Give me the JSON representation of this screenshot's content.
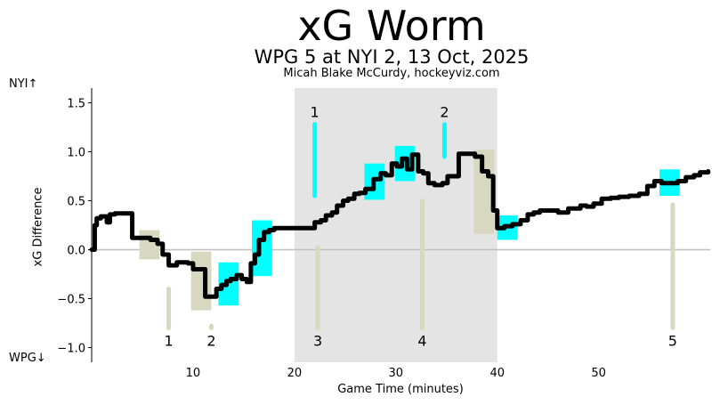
{
  "header": {
    "title": "xG Worm",
    "subtitle": "WPG 5 at NYI 2, 13 Oct, 2025",
    "byline": "Micah Blake McCurdy, hockeyviz.com"
  },
  "chart_data": {
    "type": "line",
    "title": "xG Worm",
    "subtitle": "WPG 5 at NYI 2, 13 Oct, 2025",
    "xlabel": "Game Time (minutes)",
    "ylabel": "xG Difference",
    "team_top": "NYI↑",
    "team_bottom": "WPG↓",
    "xlim": [
      0,
      61
    ],
    "ylim": [
      -1.15,
      1.65
    ],
    "xticks": [
      "10",
      "20",
      "30",
      "40",
      "50"
    ],
    "xtick_values": [
      10,
      20,
      30,
      40,
      50
    ],
    "yticks": [
      "−1.0",
      "−0.5",
      "0.0",
      "0.5",
      "1.0",
      "1.5"
    ],
    "ytick_values": [
      -1.0,
      -0.5,
      0.0,
      0.5,
      1.0,
      1.5
    ],
    "shaded_period": [
      20,
      40
    ],
    "colors": {
      "worm": "#000000",
      "nyi_powerplay": "#00ffff",
      "wpg_powerplay": "#d8d8c0",
      "period_shade": "#e4e4e4",
      "zero_line": "#bfbfbf"
    },
    "worm": {
      "x": [
        0,
        0.3,
        0.5,
        0.9,
        1.5,
        1.8,
        2.3,
        3.0,
        3.8,
        4.0,
        4.5,
        5.2,
        5.8,
        6.5,
        7.0,
        7.6,
        8.0,
        8.4,
        8.8,
        9.5,
        10.0,
        10.8,
        11.2,
        11.8,
        12.3,
        12.8,
        13.3,
        13.7,
        14.3,
        14.8,
        15.3,
        15.7,
        16.1,
        16.5,
        17.0,
        17.5,
        18.0,
        19.0,
        20.5,
        21.5,
        22.0,
        22.6,
        23.1,
        23.7,
        24.2,
        24.8,
        25.3,
        25.9,
        26.4,
        27.0,
        27.8,
        28.5,
        29.0,
        29.6,
        30.1,
        30.6,
        31.1,
        31.6,
        32.2,
        32.7,
        33.2,
        33.8,
        34.6,
        35.1,
        35.5,
        36.2,
        37.1,
        37.8,
        38.5,
        39.1,
        39.6,
        40.0,
        40.7,
        41.5,
        42.3,
        43.0,
        43.6,
        44.2,
        45.0,
        46.0,
        47.0,
        47.5,
        48.2,
        48.8,
        49.5,
        50.3,
        51.2,
        52.0,
        53.0,
        54.0,
        54.8,
        55.5,
        56.2,
        57.0,
        57.8,
        58.6,
        59.4,
        60.0,
        60.8
      ],
      "y": [
        0.0,
        0.25,
        0.32,
        0.34,
        0.28,
        0.36,
        0.37,
        0.37,
        0.37,
        0.12,
        0.12,
        0.12,
        0.1,
        0.06,
        -0.05,
        -0.16,
        -0.16,
        -0.13,
        -0.13,
        -0.14,
        -0.2,
        -0.2,
        -0.48,
        -0.48,
        -0.4,
        -0.36,
        -0.32,
        -0.3,
        -0.26,
        -0.3,
        -0.33,
        -0.14,
        -0.05,
        0.1,
        0.18,
        0.2,
        0.22,
        0.22,
        0.22,
        0.22,
        0.28,
        0.3,
        0.35,
        0.38,
        0.45,
        0.5,
        0.52,
        0.57,
        0.58,
        0.62,
        0.72,
        0.78,
        0.76,
        0.88,
        0.85,
        0.93,
        0.82,
        0.97,
        0.8,
        0.78,
        0.68,
        0.66,
        0.68,
        0.75,
        0.75,
        0.98,
        0.98,
        0.95,
        0.8,
        0.75,
        0.4,
        0.22,
        0.24,
        0.26,
        0.3,
        0.36,
        0.38,
        0.4,
        0.4,
        0.38,
        0.42,
        0.42,
        0.45,
        0.44,
        0.47,
        0.52,
        0.53,
        0.54,
        0.55,
        0.57,
        0.65,
        0.7,
        0.68,
        0.68,
        0.7,
        0.74,
        0.76,
        0.79,
        0.8
      ]
    },
    "powerplays": [
      {
        "team": "WPG",
        "x0": 4.7,
        "x1": 6.7,
        "y0": -0.1,
        "y1": 0.2
      },
      {
        "team": "WPG",
        "x0": 9.8,
        "x1": 11.8,
        "y0": -0.62,
        "y1": -0.02
      },
      {
        "team": "NYI",
        "x0": 12.5,
        "x1": 14.5,
        "y0": -0.57,
        "y1": -0.13
      },
      {
        "team": "NYI",
        "x0": 15.8,
        "x1": 17.8,
        "y0": -0.27,
        "y1": 0.3
      },
      {
        "team": "NYI",
        "x0": 26.9,
        "x1": 28.9,
        "y0": 0.51,
        "y1": 0.88
      },
      {
        "team": "NYI",
        "x0": 29.9,
        "x1": 31.9,
        "y0": 0.7,
        "y1": 1.06
      },
      {
        "team": "WPG",
        "x0": 37.7,
        "x1": 39.7,
        "y0": 0.16,
        "y1": 1.02
      },
      {
        "team": "NYI",
        "x0": 40.0,
        "x1": 42.0,
        "y0": 0.1,
        "y1": 0.35
      },
      {
        "team": "NYI",
        "x0": 56.0,
        "x1": 58.0,
        "y0": 0.55,
        "y1": 0.82
      }
    ],
    "goals": [
      {
        "team": "WPG",
        "label": "1",
        "x": 7.6,
        "y0": -0.8,
        "y1": -0.4
      },
      {
        "team": "WPG",
        "label": "2",
        "x": 11.8,
        "y0": -0.8,
        "y1": -0.78
      },
      {
        "team": "WPG",
        "label": "3",
        "x": 22.3,
        "y0": -0.8,
        "y1": 0.02
      },
      {
        "team": "NYI",
        "label": "1",
        "x": 22.0,
        "y0": 0.55,
        "y1": 1.28
      },
      {
        "team": "WPG",
        "label": "4",
        "x": 32.6,
        "y0": -0.8,
        "y1": 0.5
      },
      {
        "team": "NYI",
        "label": "2",
        "x": 34.8,
        "y0": 0.95,
        "y1": 1.28
      },
      {
        "team": "WPG",
        "label": "5",
        "x": 57.3,
        "y0": -0.8,
        "y1": 0.46
      }
    ]
  }
}
